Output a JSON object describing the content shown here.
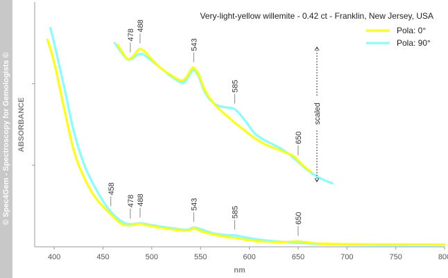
{
  "watermark": "© Spec4Gem - Spectroscopy for Gemologists ©",
  "chart_data": {
    "type": "line",
    "title": "Very-light-yellow willemite - 0.42 ct - Franklin, New Jersey, USA",
    "xlabel": "nm",
    "ylabel": "ABSORBANCE",
    "xlim": [
      380,
      800
    ],
    "xticks": [
      400,
      450,
      500,
      550,
      600,
      650,
      700,
      750,
      800
    ],
    "ylim": [
      0,
      1
    ],
    "ytick_count": 2,
    "grid": false,
    "legend_position": "top-right",
    "scaled_note": "scaled",
    "series_colors": {
      "pola_0": "#ffff00",
      "pola_90": "#80ffff"
    },
    "series": [
      {
        "name": "Pola:   0°",
        "color": "#ffff00",
        "x": [
          393,
          400,
          410,
          420,
          430,
          440,
          450,
          458,
          465,
          470,
          475,
          480,
          488,
          495,
          505,
          520,
          535,
          543,
          550,
          565,
          580,
          585,
          595,
          610,
          630,
          650,
          670,
          700,
          730,
          760,
          800
        ],
        "y": [
          0.946,
          0.839,
          0.63,
          0.434,
          0.315,
          0.232,
          0.176,
          0.14,
          0.11,
          0.095,
          0.09,
          0.092,
          0.097,
          0.09,
          0.082,
          0.072,
          0.065,
          0.075,
          0.064,
          0.046,
          0.035,
          0.033,
          0.025,
          0.017,
          0.012,
          0.016,
          0.006,
          0.003,
          0.002,
          0.002,
          0.001
        ]
      },
      {
        "name": "Pola: 90°",
        "color": "#80ffff",
        "x": [
          396,
          400,
          410,
          420,
          430,
          440,
          450,
          458,
          465,
          470,
          475,
          480,
          488,
          495,
          505,
          520,
          535,
          543,
          550,
          565,
          580,
          585,
          595,
          610,
          630,
          650,
          670,
          700,
          730,
          760,
          800
        ],
        "y": [
          1.0,
          0.928,
          0.731,
          0.523,
          0.377,
          0.28,
          0.201,
          0.152,
          0.121,
          0.106,
          0.096,
          0.095,
          0.1,
          0.095,
          0.087,
          0.077,
          0.069,
          0.08,
          0.072,
          0.051,
          0.044,
          0.044,
          0.035,
          0.024,
          0.015,
          0.009,
          0.004,
          0.001,
          0.0,
          0.0,
          0.0
        ]
      }
    ],
    "scaled_series": [
      {
        "name": "Pola:   0°",
        "color": "#ffff00",
        "x": [
          465,
          470,
          475,
          480,
          485,
          488,
          492,
          500,
          510,
          520,
          530,
          535,
          540,
          543,
          548,
          555,
          565,
          575,
          585,
          595,
          605,
          615,
          625,
          635,
          645,
          655,
          663
        ],
        "y": [
          0.79,
          0.752,
          0.72,
          0.728,
          0.76,
          0.77,
          0.76,
          0.718,
          0.67,
          0.637,
          0.61,
          0.625,
          0.665,
          0.675,
          0.64,
          0.555,
          0.485,
          0.44,
          0.397,
          0.358,
          0.32,
          0.29,
          0.27,
          0.25,
          0.228,
          0.18,
          0.15
        ]
      },
      {
        "name": "Pola: 90°",
        "color": "#80ffff",
        "x": [
          462,
          470,
          475,
          480,
          485,
          488,
          492,
          500,
          510,
          520,
          530,
          535,
          540,
          543,
          548,
          555,
          565,
          575,
          585,
          595,
          605,
          615,
          625,
          635,
          645,
          655,
          665,
          675,
          685
        ],
        "y": [
          0.8,
          0.745,
          0.718,
          0.722,
          0.74,
          0.745,
          0.74,
          0.71,
          0.67,
          0.63,
          0.6,
          0.612,
          0.65,
          0.663,
          0.63,
          0.545,
          0.49,
          0.475,
          0.465,
          0.412,
          0.345,
          0.31,
          0.285,
          0.258,
          0.22,
          0.175,
          0.138,
          0.11,
          0.09
        ]
      }
    ],
    "peaks_lower": [
      458,
      478,
      488,
      543,
      585,
      650
    ],
    "peaks_upper": [
      478,
      488,
      543,
      585,
      650
    ]
  }
}
